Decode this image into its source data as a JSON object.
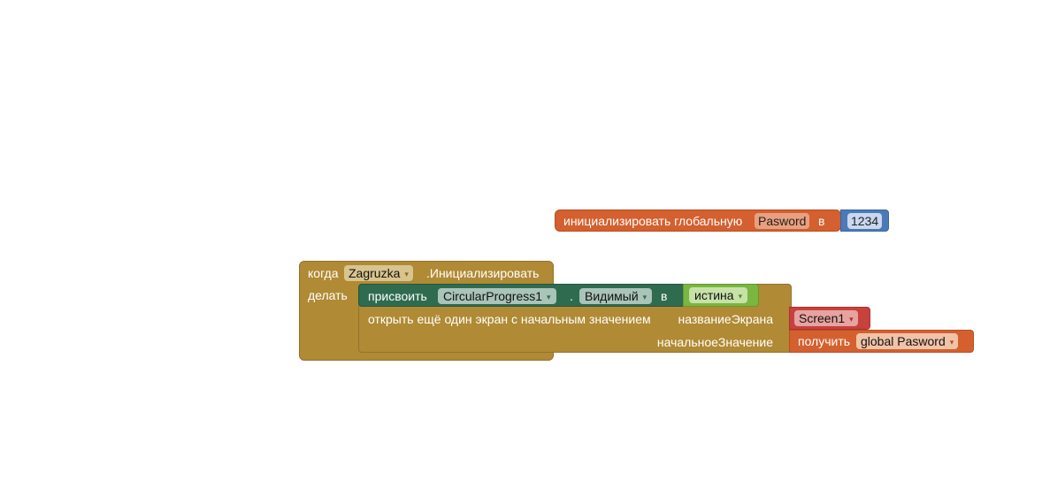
{
  "global_init": {
    "label": "инициализировать глобальную",
    "var_name": "Pasword",
    "to_label": "в",
    "value": "1234"
  },
  "event": {
    "when_label": "когда",
    "component": "Zagruzka",
    "event_name": ".Инициализировать",
    "do_label": "делать"
  },
  "set_block": {
    "label": "присвоить",
    "component": "CircularProgress1",
    "dot": ".",
    "property": "Видимый",
    "to_label": "в",
    "bool_value": "истина"
  },
  "open_screen": {
    "label": "открыть ещё один экран с начальным значением",
    "screen_name_label": "названиеЭкрана",
    "screen_value": "Screen1",
    "start_value_label": "начальноеЗначение",
    "get_label": "получить",
    "get_var": "global Pasword"
  },
  "dropdown_arrow": "▾",
  "colors": {
    "variables": "#d4602f",
    "math": "#4a7ab8",
    "control": "#b08a34",
    "component_setter": "#2f6b4f",
    "logic": "#7ab640",
    "text": "#c7413d"
  }
}
